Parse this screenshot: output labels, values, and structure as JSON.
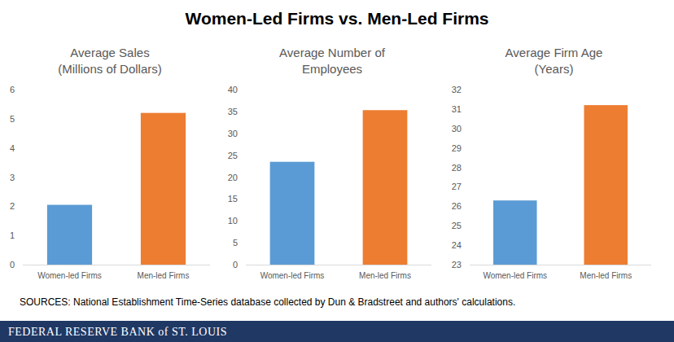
{
  "title": "Women-Led Firms vs. Men-Led Firms",
  "source": "SOURCES: National Establishment Time-Series database collected by Dun & Bradstreet and authors' calculations.",
  "footer": "FEDERAL RESERVE BANK of ST. LOUIS",
  "chart_data": [
    {
      "type": "bar",
      "title": "Average Sales\n(Millions of Dollars)",
      "categories": [
        "Women-led Firms",
        "Men-led Firms"
      ],
      "values": [
        2.05,
        5.2
      ],
      "colors": [
        "#5b9bd5",
        "#ed7d31"
      ],
      "ylim": [
        0,
        6
      ],
      "yticks": [
        0,
        1,
        2,
        3,
        4,
        5,
        6
      ],
      "grid": false
    },
    {
      "type": "bar",
      "title": "Average Number of\nEmployees",
      "categories": [
        "Women-led Firms",
        "Men-led Firms"
      ],
      "values": [
        23.5,
        35.3
      ],
      "colors": [
        "#5b9bd5",
        "#ed7d31"
      ],
      "ylim": [
        0,
        40
      ],
      "yticks": [
        0,
        5,
        10,
        15,
        20,
        25,
        30,
        35,
        40
      ],
      "grid": false
    },
    {
      "type": "bar",
      "title": "Average Firm Age\n(Years)",
      "categories": [
        "Women-led Firms",
        "Men-led Firms"
      ],
      "values": [
        26.3,
        31.2
      ],
      "colors": [
        "#5b9bd5",
        "#ed7d31"
      ],
      "ylim": [
        23,
        32
      ],
      "yticks": [
        23,
        24,
        25,
        26,
        27,
        28,
        29,
        30,
        31,
        32
      ],
      "grid": false
    }
  ]
}
